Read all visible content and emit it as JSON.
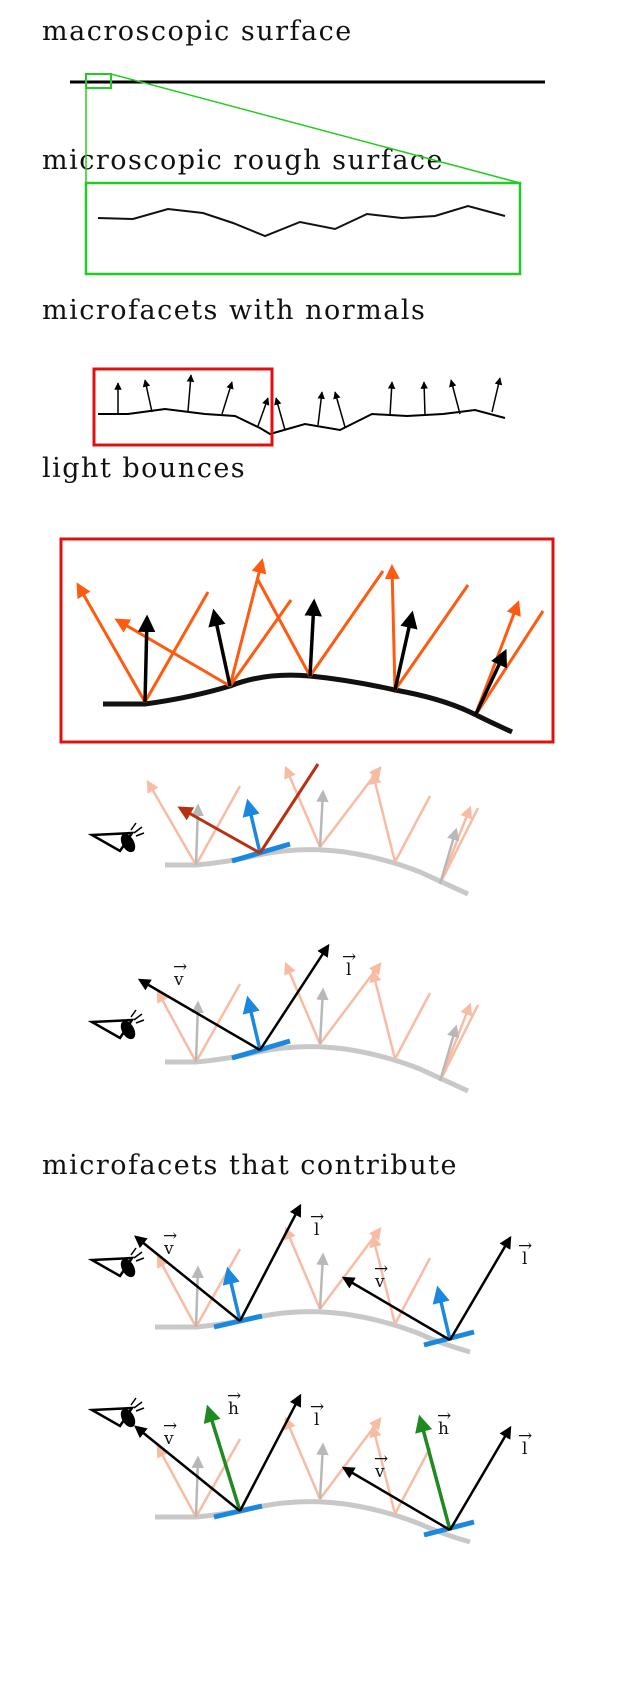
{
  "headings": {
    "macro": "macroscopic surface",
    "micro": "microscopic rough surface",
    "normals": "microfacets with normals",
    "bounces": "light bounces",
    "contribute": "microfacets that contribute"
  },
  "vectors": {
    "view": "v",
    "light": "l",
    "half": "h"
  },
  "icons": {
    "eye": "eye-icon"
  },
  "colors": {
    "surface": "#000000",
    "zoom_box": "#22cc22",
    "highlight_box": "#e01010",
    "reflected_ray": "#ff5a10",
    "faded_ray": "#f8bca4",
    "faded_normal": "#b8b8b8",
    "faded_surface": "#c8c8c8",
    "active_facet": "#1b88e0",
    "highlight_reflect": "#b83010",
    "half_vector": "#1f8a1f"
  }
}
